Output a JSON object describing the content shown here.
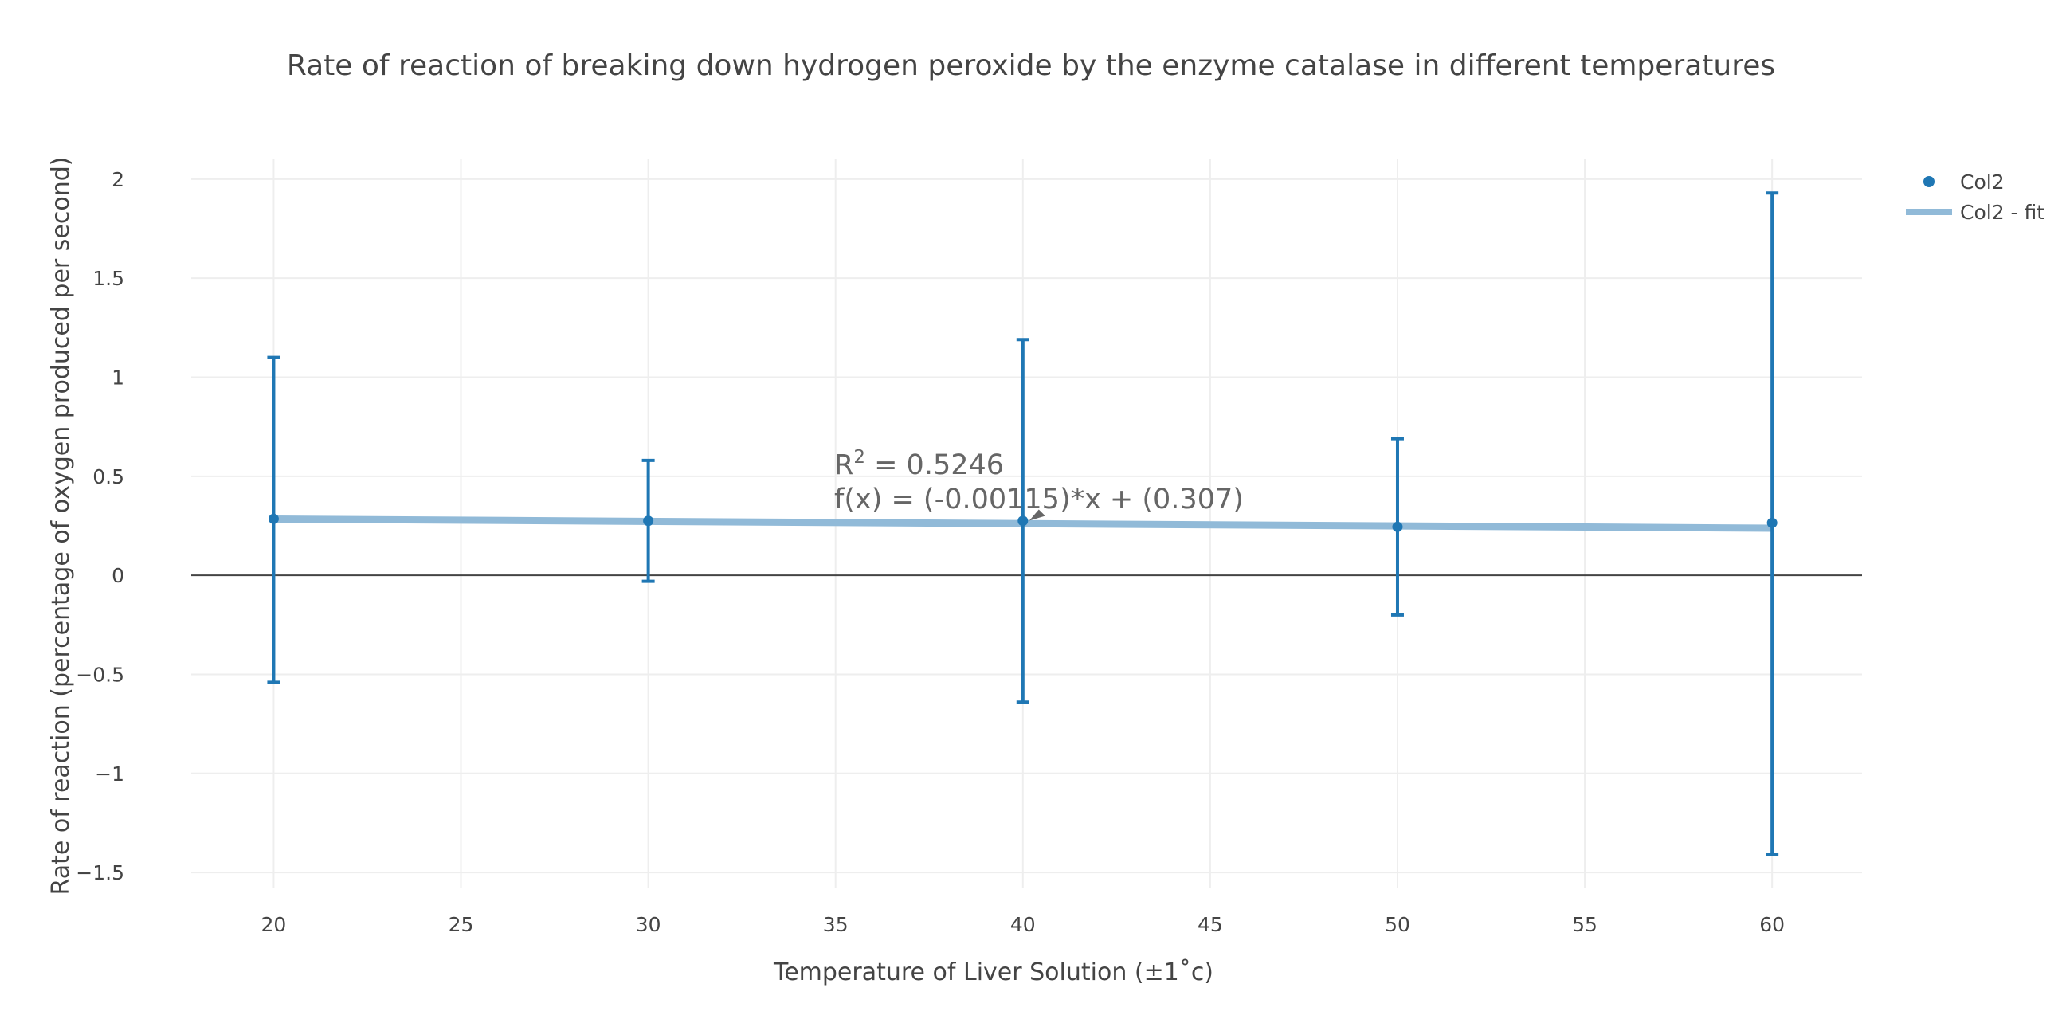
{
  "chart_data": {
    "type": "scatter",
    "title": "Rate of reaction of breaking down hydrogen peroxide by the enzyme catalase in different temperatures",
    "xlabel": "Temperature of Liver Solution (±1˚c)",
    "ylabel": "Rate of reaction (percentage of oxygen produced per second)",
    "xlim": [
      17.8,
      62.4
    ],
    "ylim": [
      -1.58,
      2.1
    ],
    "xticks": [
      20,
      25,
      30,
      35,
      40,
      45,
      50,
      55,
      60
    ],
    "yticks": [
      -1.5,
      -1,
      -0.5,
      0,
      0.5,
      1,
      1.5,
      2
    ],
    "ytick_labels": [
      "−1.5",
      "−1",
      "−0.5",
      "0",
      "0.5",
      "1",
      "1.5",
      "2"
    ],
    "grid": true,
    "legend_position": "top-right",
    "series": [
      {
        "name": "Col2",
        "mode": "markers",
        "color": "#1f77b4",
        "x": [
          20,
          30,
          40,
          50,
          60
        ],
        "y": [
          0.285,
          0.275,
          0.275,
          0.245,
          0.265
        ],
        "error_minus": [
          0.825,
          0.305,
          0.915,
          0.445,
          1.675
        ],
        "error_plus": [
          0.815,
          0.305,
          0.915,
          0.445,
          1.665
        ]
      },
      {
        "name": "Col2 - fit",
        "mode": "line",
        "color": "#91bad8",
        "x": [
          20,
          60
        ],
        "y": [
          0.284,
          0.238
        ]
      }
    ],
    "annotation": {
      "r2_prefix": "R",
      "r2_sup": "2",
      "r2_value": " = 0.5246",
      "equation": "f(x) = (-0.00115)*x + (0.307)",
      "arrow_to": [
        40,
        0.26
      ]
    }
  }
}
